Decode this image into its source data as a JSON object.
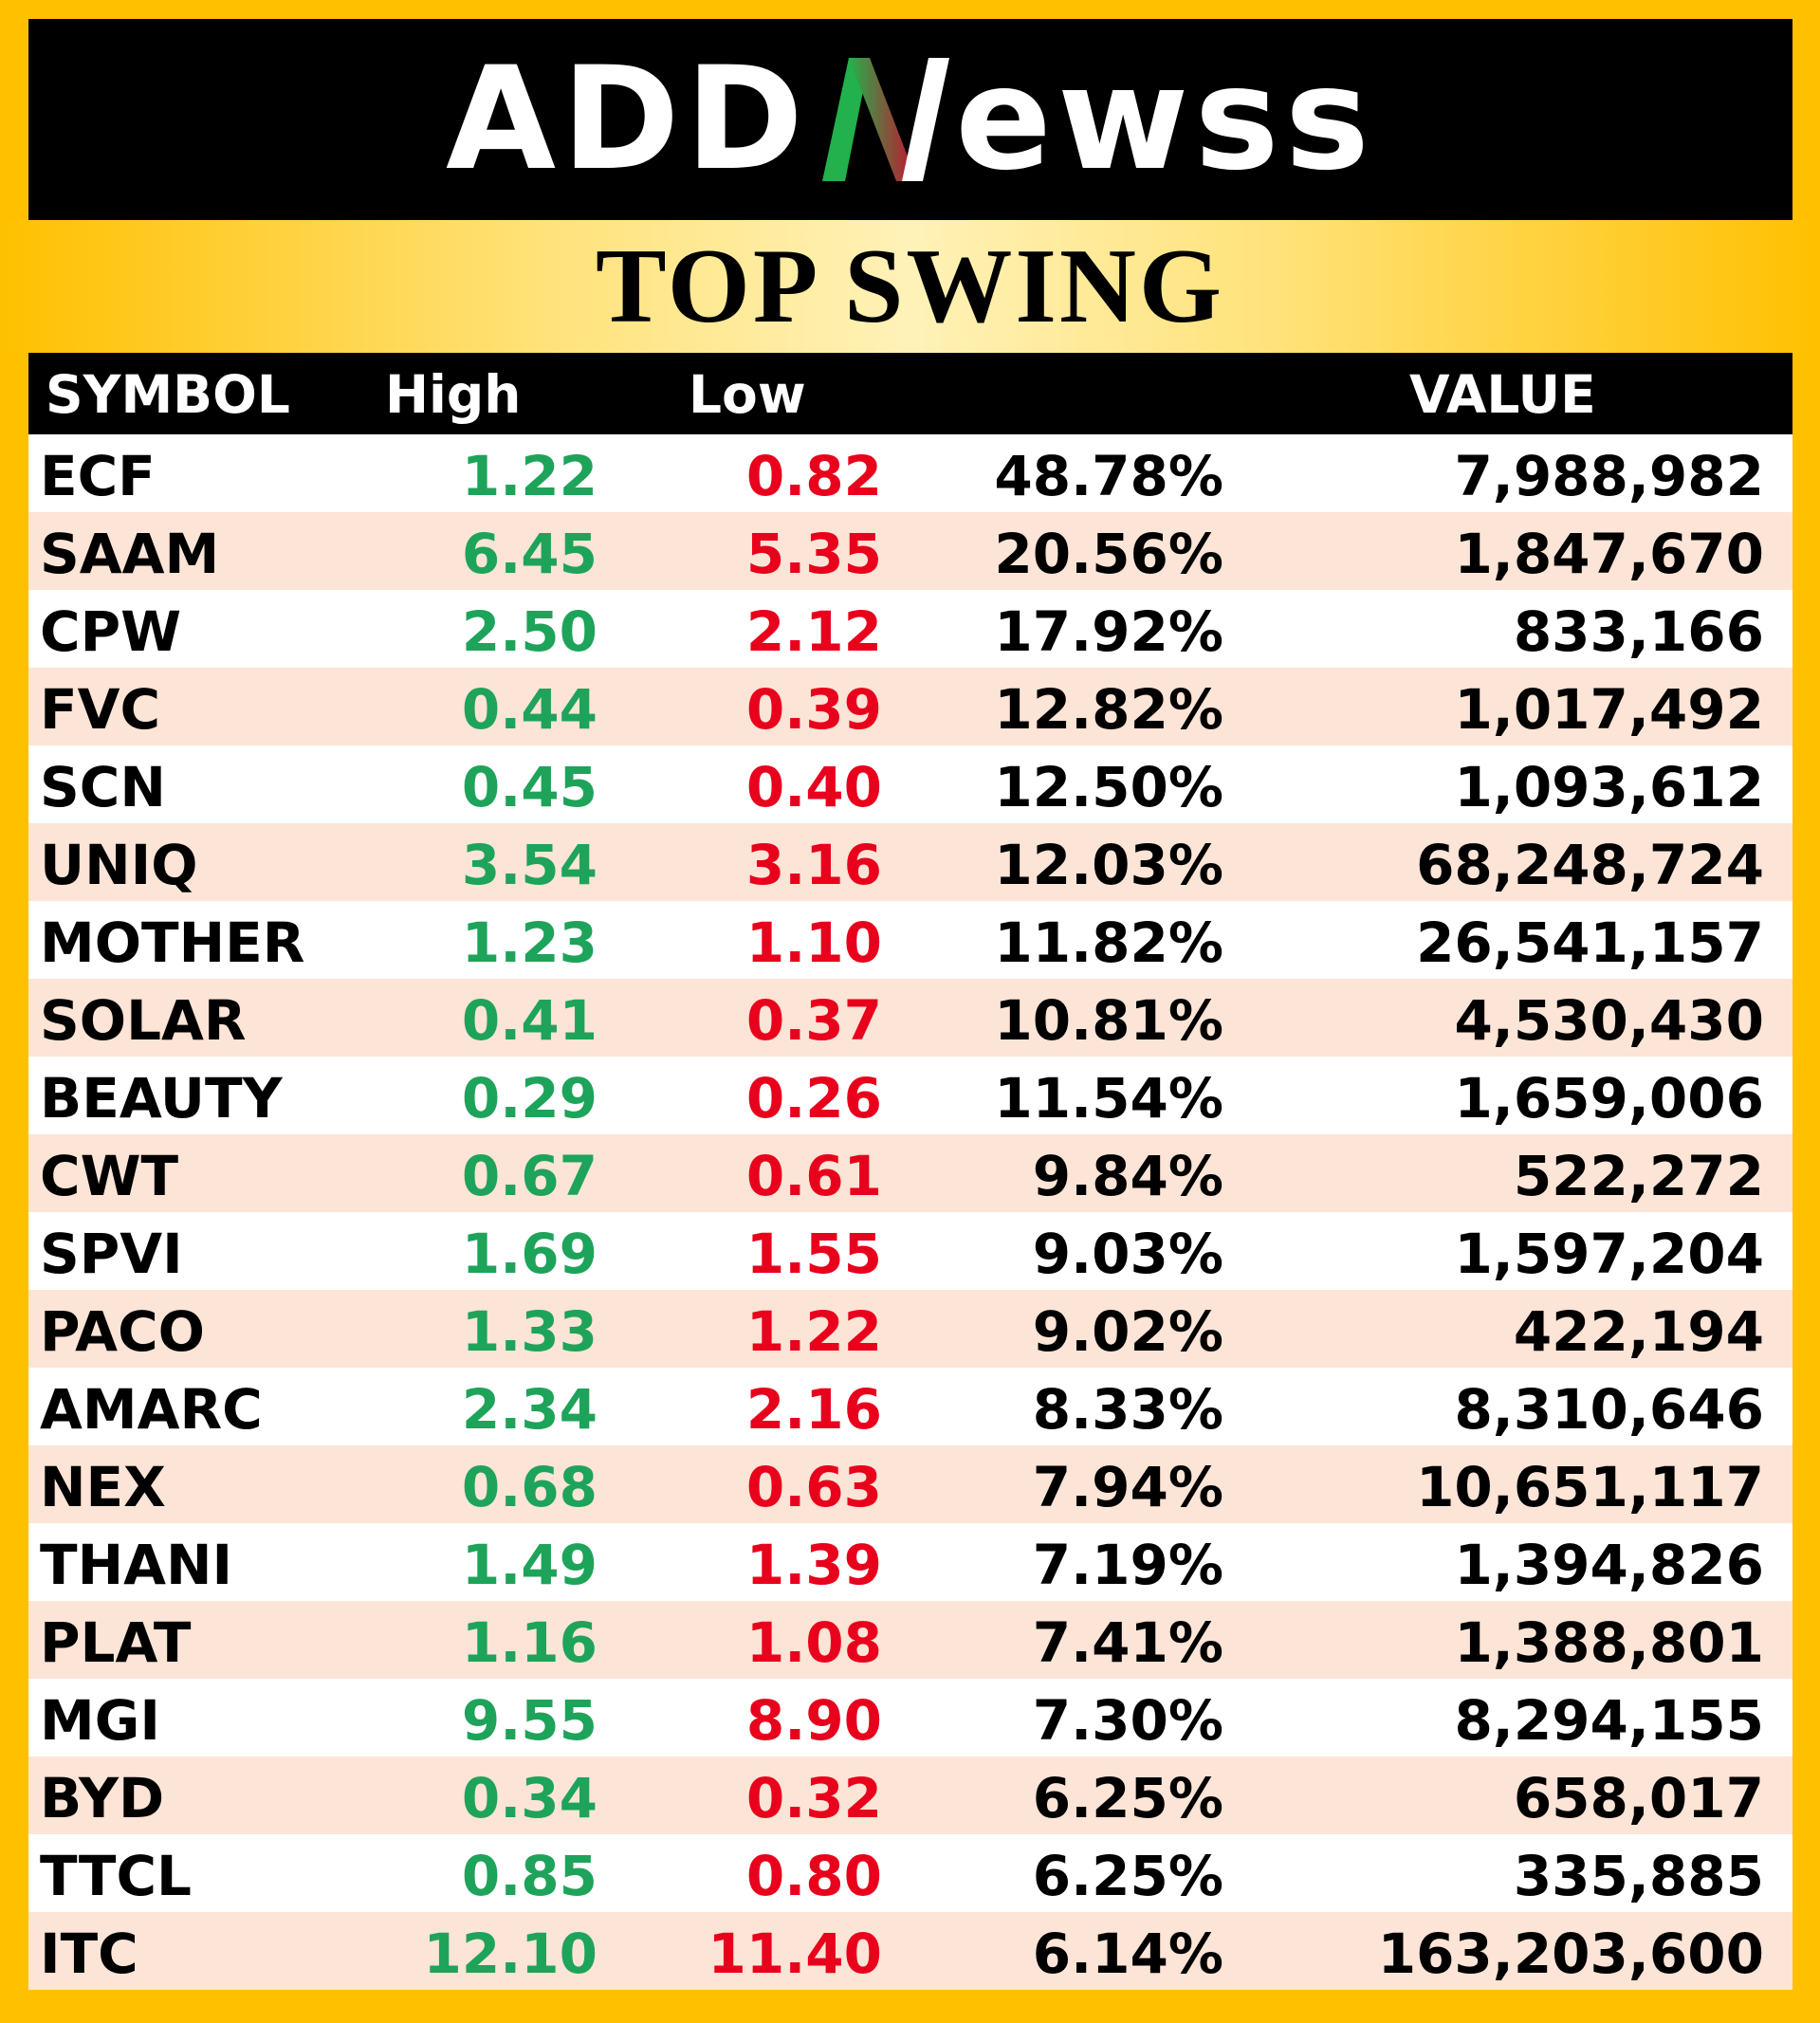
{
  "brand": {
    "logo_text_left": "ADD",
    "logo_text_right": "ewss",
    "colors": {
      "green": "#22B14C",
      "red": "#C8102E",
      "background": "#FFC000"
    }
  },
  "title": "TOP SWING",
  "table": {
    "headers": {
      "symbol": "SYMBOL",
      "high": "High",
      "low": "Low",
      "pct": "",
      "value": "VALUE"
    },
    "rows": [
      {
        "symbol": "ECF",
        "high": "1.22",
        "low": "0.82",
        "pct": "48.78%",
        "value": "7,988,982"
      },
      {
        "symbol": "SAAM",
        "high": "6.45",
        "low": "5.35",
        "pct": "20.56%",
        "value": "1,847,670"
      },
      {
        "symbol": "CPW",
        "high": "2.50",
        "low": "2.12",
        "pct": "17.92%",
        "value": "833,166"
      },
      {
        "symbol": "FVC",
        "high": "0.44",
        "low": "0.39",
        "pct": "12.82%",
        "value": "1,017,492"
      },
      {
        "symbol": "SCN",
        "high": "0.45",
        "low": "0.40",
        "pct": "12.50%",
        "value": "1,093,612"
      },
      {
        "symbol": "UNIQ",
        "high": "3.54",
        "low": "3.16",
        "pct": "12.03%",
        "value": "68,248,724"
      },
      {
        "symbol": "MOTHER",
        "high": "1.23",
        "low": "1.10",
        "pct": "11.82%",
        "value": "26,541,157"
      },
      {
        "symbol": "SOLAR",
        "high": "0.41",
        "low": "0.37",
        "pct": "10.81%",
        "value": "4,530,430"
      },
      {
        "symbol": "BEAUTY",
        "high": "0.29",
        "low": "0.26",
        "pct": "11.54%",
        "value": "1,659,006"
      },
      {
        "symbol": "CWT",
        "high": "0.67",
        "low": "0.61",
        "pct": "9.84%",
        "value": "522,272"
      },
      {
        "symbol": "SPVI",
        "high": "1.69",
        "low": "1.55",
        "pct": "9.03%",
        "value": "1,597,204"
      },
      {
        "symbol": "PACO",
        "high": "1.33",
        "low": "1.22",
        "pct": "9.02%",
        "value": "422,194"
      },
      {
        "symbol": "AMARC",
        "high": "2.34",
        "low": "2.16",
        "pct": "8.33%",
        "value": "8,310,646"
      },
      {
        "symbol": "NEX",
        "high": "0.68",
        "low": "0.63",
        "pct": "7.94%",
        "value": "10,651,117"
      },
      {
        "symbol": "THANI",
        "high": "1.49",
        "low": "1.39",
        "pct": "7.19%",
        "value": "1,394,826"
      },
      {
        "symbol": "PLAT",
        "high": "1.16",
        "low": "1.08",
        "pct": "7.41%",
        "value": "1,388,801"
      },
      {
        "symbol": "MGI",
        "high": "9.55",
        "low": "8.90",
        "pct": "7.30%",
        "value": "8,294,155"
      },
      {
        "symbol": "BYD",
        "high": "0.34",
        "low": "0.32",
        "pct": "6.25%",
        "value": "658,017"
      },
      {
        "symbol": "TTCL",
        "high": "0.85",
        "low": "0.80",
        "pct": "6.25%",
        "value": "335,885"
      },
      {
        "symbol": "ITC",
        "high": "12.10",
        "low": "11.40",
        "pct": "6.14%",
        "value": "163,203,600"
      }
    ]
  }
}
